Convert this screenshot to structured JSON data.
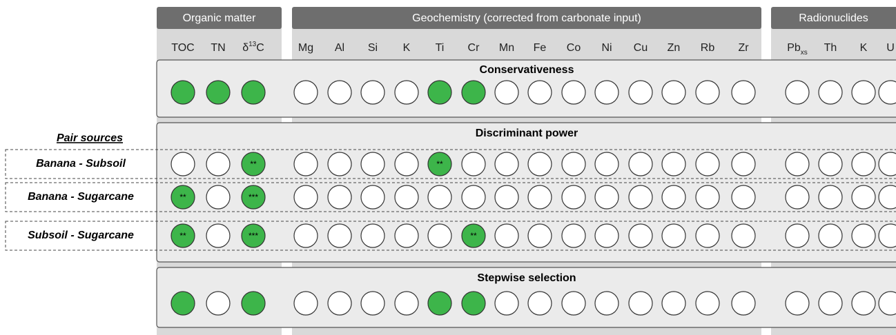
{
  "groups": [
    {
      "title": "Organic matter",
      "columns": [
        [
          {
            "t": "TOC"
          }
        ],
        [
          {
            "t": "TN"
          }
        ],
        [
          {
            "t": "δ"
          },
          {
            "t": "13",
            "pos": "sup"
          },
          {
            "t": "C"
          }
        ]
      ]
    },
    {
      "title": "Geochemistry (corrected from carbonate input)",
      "columns": [
        [
          {
            "t": "Mg"
          }
        ],
        [
          {
            "t": "Al"
          }
        ],
        [
          {
            "t": "Si"
          }
        ],
        [
          {
            "t": "K"
          }
        ],
        [
          {
            "t": "Ti"
          }
        ],
        [
          {
            "t": "Cr"
          }
        ],
        [
          {
            "t": "Mn"
          }
        ],
        [
          {
            "t": "Fe"
          }
        ],
        [
          {
            "t": "Co"
          }
        ],
        [
          {
            "t": "Ni"
          }
        ],
        [
          {
            "t": "Cu"
          }
        ],
        [
          {
            "t": "Zn"
          }
        ],
        [
          {
            "t": "Rb"
          }
        ],
        [
          {
            "t": "Zr"
          }
        ]
      ]
    },
    {
      "title": "Radionuclides",
      "columns": [
        [
          {
            "t": "Pb"
          },
          {
            "t": "xs",
            "pos": "sub"
          }
        ],
        [
          {
            "t": "Th"
          }
        ],
        [
          {
            "t": "K"
          }
        ],
        [
          {
            "t": "U"
          }
        ]
      ]
    }
  ],
  "pair_heading": "Pair sources",
  "panels": [
    {
      "title": "Conservativeness",
      "rows": [
        {
          "cells": [
            1,
            1,
            1,
            0,
            0,
            0,
            0,
            1,
            1,
            0,
            0,
            0,
            0,
            0,
            0,
            0,
            0,
            0,
            0,
            0,
            0
          ]
        }
      ]
    },
    {
      "title": "Discriminant power",
      "rows": [
        {
          "label": "Banana - Subsoil",
          "cells": [
            0,
            0,
            1,
            0,
            0,
            0,
            0,
            1,
            0,
            0,
            0,
            0,
            0,
            0,
            0,
            0,
            0,
            0,
            0,
            0,
            0
          ],
          "stars": {
            "2": "**",
            "7": "**"
          }
        },
        {
          "label": "Banana - Sugarcane",
          "cells": [
            1,
            0,
            1,
            0,
            0,
            0,
            0,
            0,
            0,
            0,
            0,
            0,
            0,
            0,
            0,
            0,
            0,
            0,
            0,
            0,
            0
          ],
          "stars": {
            "0": "**",
            "2": "***"
          }
        },
        {
          "label": "Subsoil - Sugarcane",
          "cells": [
            1,
            0,
            1,
            0,
            0,
            0,
            0,
            0,
            1,
            0,
            0,
            0,
            0,
            0,
            0,
            0,
            0,
            0,
            0,
            0,
            0
          ],
          "stars": {
            "0": "**",
            "2": "***",
            "8": "**"
          }
        }
      ]
    },
    {
      "title": "Stepwise selection",
      "rows": [
        {
          "cells": [
            1,
            0,
            1,
            0,
            0,
            0,
            0,
            1,
            1,
            0,
            0,
            0,
            0,
            0,
            0,
            0,
            0,
            0,
            0,
            0,
            0
          ]
        }
      ]
    }
  ]
}
